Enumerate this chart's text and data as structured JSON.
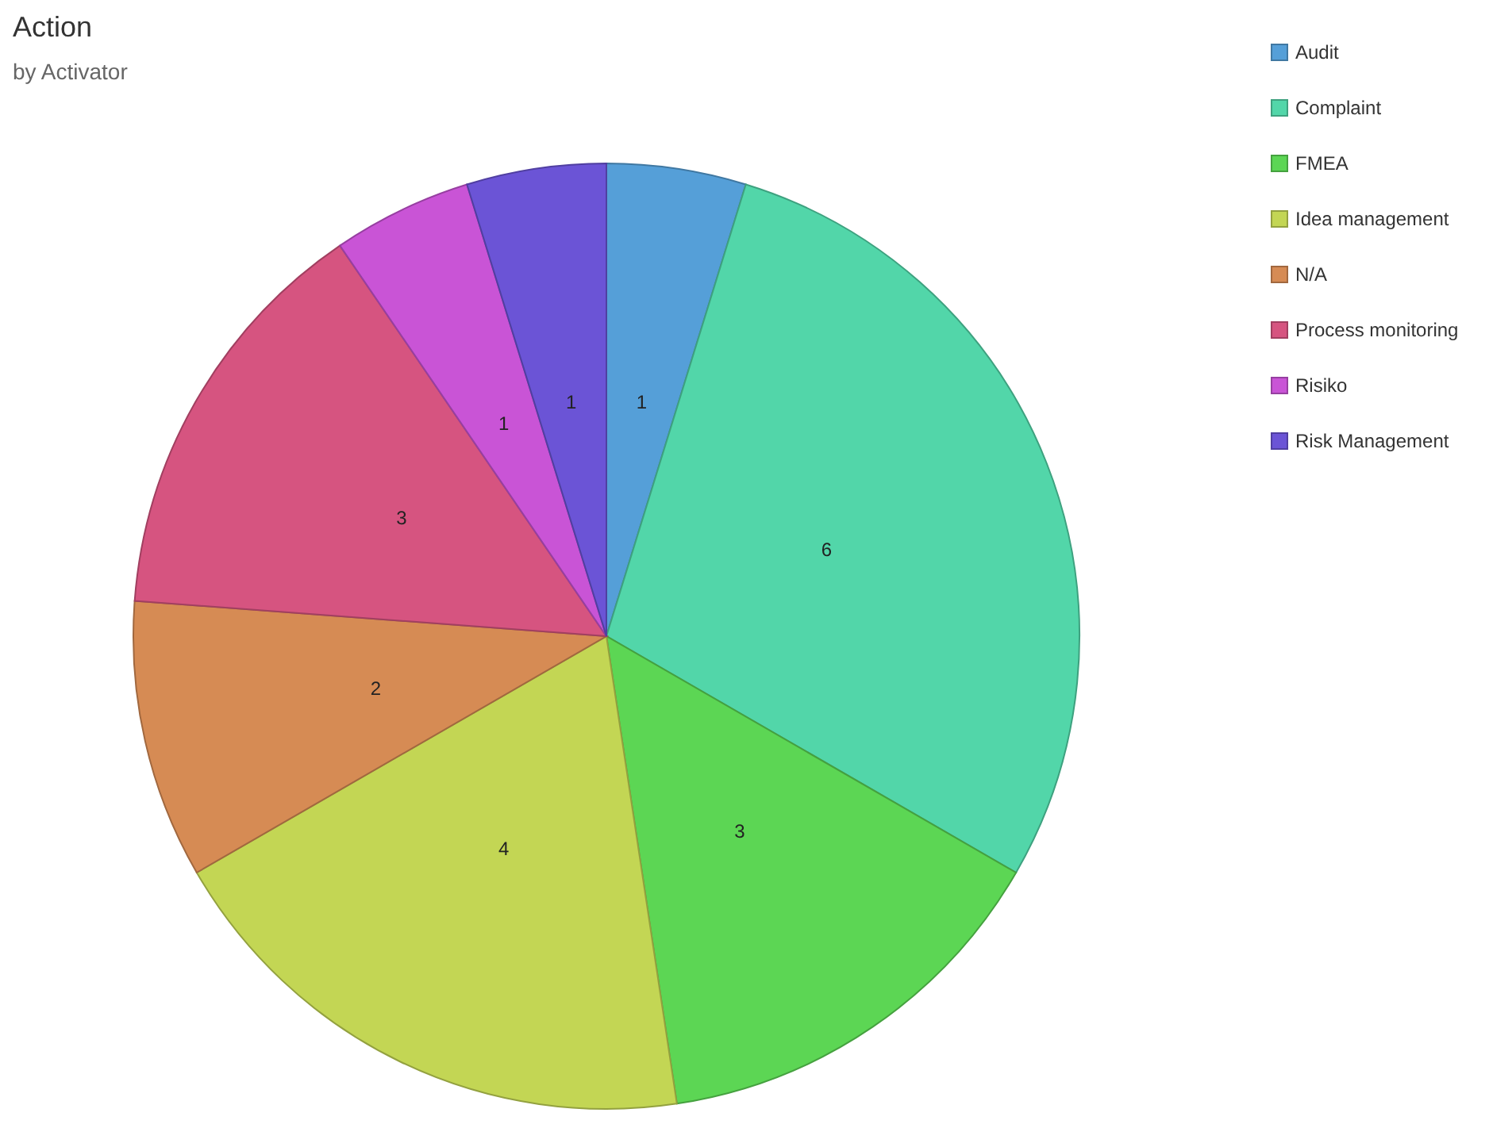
{
  "chart_data": {
    "type": "pie",
    "title": "Action",
    "subtitle": "by Activator",
    "categories": [
      "Audit",
      "Complaint",
      "FMEA",
      "Idea management",
      "N/A",
      "Process monitoring",
      "Risiko",
      "Risk Management"
    ],
    "values": [
      1,
      6,
      3,
      4,
      2,
      3,
      1,
      1
    ],
    "colors": [
      "#559fd8",
      "#52d6a9",
      "#5cd654",
      "#c3d654",
      "#d68b54",
      "#d65480",
      "#c954d6",
      "#6b54d6"
    ],
    "data_labels": true,
    "legend": "top right"
  }
}
